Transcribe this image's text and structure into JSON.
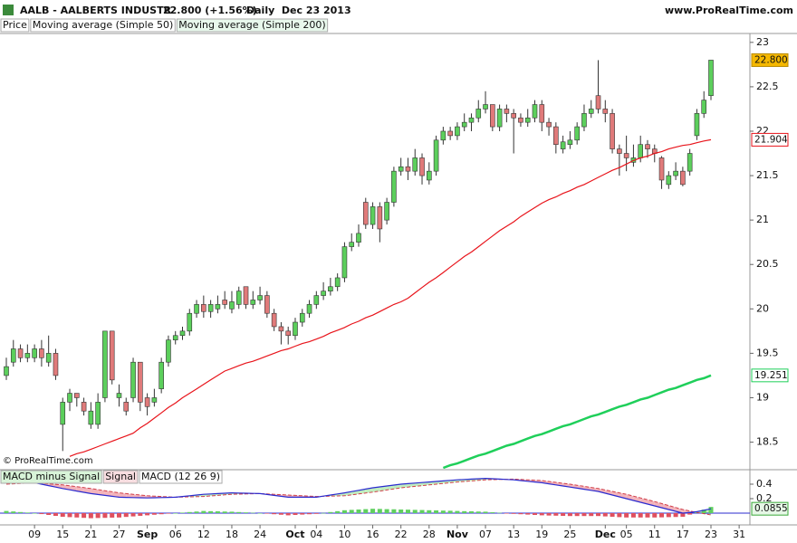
{
  "chart_data": [
    {
      "type": "candlestick",
      "title": "AALB - AALBERTS INDUSTR",
      "subtitle": "22.800 (+1.56%)",
      "period": "Daily  Dec 23 2013",
      "source": "www.ProRealTime.com",
      "copyright": "© ProRealTime.com",
      "price_name": "Price",
      "close_label": "22.800",
      "up_color": "#5ccf5c",
      "down_color": "#e07a7a",
      "label_color": "#f5b800",
      "categories": [
        null,
        null,
        null,
        null,
        "09",
        null,
        null,
        null,
        "15",
        null,
        null,
        null,
        "21",
        null,
        null,
        null,
        "27",
        null,
        null,
        null,
        "Sep",
        null,
        null,
        null,
        "06",
        null,
        null,
        null,
        "12",
        null,
        null,
        null,
        "18",
        null,
        null,
        null,
        "24",
        null,
        null,
        null,
        null,
        "Oct",
        null,
        null,
        "04",
        null,
        null,
        null,
        "10",
        null,
        null,
        null,
        "16",
        null,
        null,
        null,
        "22",
        null,
        null,
        null,
        "28",
        null,
        null,
        null,
        "Nov",
        null,
        null,
        null,
        "07",
        null,
        null,
        null,
        "13",
        null,
        null,
        null,
        "19",
        null,
        null,
        null,
        "25",
        null,
        null,
        null,
        null,
        "Dec",
        null,
        null,
        "05",
        null,
        null,
        null,
        "11",
        null,
        null,
        null,
        "17",
        null,
        null,
        null,
        "23",
        null,
        null,
        null,
        "31"
      ],
      "open": [
        19.25,
        19.4,
        19.55,
        19.45,
        19.45,
        19.55,
        19.4,
        19.5,
        18.7,
        18.95,
        19.05,
        18.95,
        18.7,
        18.7,
        19.0,
        19.75,
        19.0,
        18.95,
        19.0,
        19.4,
        19.0,
        18.95,
        19.1,
        19.4,
        19.65,
        19.7,
        19.75,
        19.95,
        20.05,
        19.97,
        20.0,
        20.1,
        20.0,
        20.05,
        20.25,
        20.05,
        20.1,
        20.15,
        19.95,
        19.8,
        19.75,
        19.7,
        19.85,
        19.95,
        20.05,
        20.15,
        20.2,
        20.25,
        20.35,
        20.7,
        20.75,
        21.2,
        20.95,
        21.15,
        21.0,
        21.2,
        21.55,
        21.6,
        21.55,
        21.7,
        21.45,
        21.55,
        21.9,
        22.0,
        21.95,
        22.05,
        22.1,
        22.15,
        22.25,
        22.3,
        22.05,
        22.25,
        22.2,
        22.15,
        22.1,
        22.15,
        22.3,
        22.1,
        22.05,
        21.8,
        21.85,
        21.9,
        22.05,
        22.2,
        22.4,
        22.25,
        22.2,
        21.8,
        21.75,
        21.65,
        21.7,
        21.85,
        21.8,
        21.7,
        21.4,
        21.5,
        21.55,
        21.55,
        21.95,
        22.2,
        22.4,
        null,
        null,
        null,
        null
      ],
      "high": [
        19.45,
        19.65,
        19.6,
        19.6,
        19.6,
        19.65,
        19.7,
        19.55,
        19.0,
        19.1,
        19.05,
        19.0,
        18.95,
        19.05,
        19.75,
        19.75,
        19.15,
        19.0,
        19.45,
        19.4,
        19.05,
        19.1,
        19.45,
        19.7,
        19.75,
        19.8,
        20.0,
        20.1,
        20.15,
        20.1,
        20.15,
        20.2,
        20.2,
        20.25,
        20.25,
        20.2,
        20.25,
        20.2,
        20.0,
        19.85,
        19.8,
        19.9,
        20.0,
        20.1,
        20.2,
        20.3,
        20.35,
        20.4,
        20.75,
        20.85,
        20.95,
        21.25,
        21.2,
        21.2,
        21.25,
        21.6,
        21.7,
        21.7,
        21.8,
        21.75,
        21.65,
        21.95,
        22.05,
        22.05,
        22.1,
        22.2,
        22.2,
        22.35,
        22.45,
        22.3,
        22.3,
        22.3,
        22.25,
        22.2,
        22.25,
        22.35,
        22.35,
        22.15,
        22.1,
        21.95,
        22.0,
        22.1,
        22.3,
        22.35,
        22.8,
        22.35,
        22.25,
        21.85,
        21.95,
        21.85,
        21.95,
        21.9,
        21.85,
        21.72,
        21.55,
        21.65,
        21.6,
        21.8,
        22.25,
        22.45,
        22.8,
        null,
        null,
        null,
        null
      ],
      "low": [
        19.2,
        19.35,
        19.4,
        19.4,
        19.4,
        19.35,
        19.35,
        19.2,
        18.4,
        18.85,
        18.9,
        18.8,
        18.65,
        18.65,
        18.95,
        19.15,
        18.9,
        18.8,
        18.95,
        18.85,
        18.8,
        18.9,
        19.05,
        19.35,
        19.6,
        19.65,
        19.7,
        19.9,
        19.9,
        19.9,
        19.95,
        20.0,
        19.95,
        20.0,
        20.0,
        20.0,
        20.05,
        19.9,
        19.75,
        19.6,
        19.6,
        19.65,
        19.8,
        19.9,
        20.0,
        20.1,
        20.15,
        20.2,
        20.3,
        20.65,
        20.7,
        20.9,
        20.9,
        20.75,
        20.95,
        21.15,
        21.5,
        21.45,
        21.5,
        21.4,
        21.4,
        21.5,
        21.85,
        21.9,
        21.9,
        22.0,
        22.0,
        22.1,
        22.2,
        22.0,
        22.0,
        22.1,
        21.75,
        22.05,
        22.05,
        22.1,
        22.0,
        21.95,
        21.75,
        21.75,
        21.8,
        21.85,
        22.0,
        22.15,
        22.2,
        22.1,
        21.75,
        21.5,
        21.55,
        21.6,
        21.65,
        21.7,
        21.65,
        21.35,
        21.35,
        21.45,
        21.38,
        21.5,
        21.9,
        22.15,
        22.35,
        null,
        null,
        null,
        null
      ],
      "close": [
        19.35,
        19.55,
        19.45,
        19.5,
        19.55,
        19.45,
        19.5,
        19.25,
        18.95,
        19.05,
        19.0,
        18.85,
        18.85,
        18.95,
        19.75,
        19.2,
        19.05,
        18.85,
        19.4,
        18.95,
        18.9,
        19.0,
        19.4,
        19.65,
        19.7,
        19.75,
        19.95,
        20.05,
        19.97,
        20.05,
        20.05,
        20.05,
        20.08,
        20.2,
        20.05,
        20.1,
        20.15,
        19.95,
        19.8,
        19.75,
        19.7,
        19.85,
        19.95,
        20.05,
        20.15,
        20.2,
        20.25,
        20.35,
        20.7,
        20.75,
        20.85,
        20.95,
        21.15,
        20.9,
        21.2,
        21.55,
        21.6,
        21.55,
        21.7,
        21.5,
        21.55,
        21.9,
        22.0,
        21.95,
        22.05,
        22.1,
        22.15,
        22.25,
        22.3,
        22.05,
        22.25,
        22.2,
        22.15,
        22.1,
        22.15,
        22.3,
        22.1,
        22.05,
        21.85,
        21.88,
        21.9,
        22.05,
        22.2,
        22.25,
        22.25,
        22.2,
        21.8,
        21.75,
        21.7,
        21.7,
        21.85,
        21.8,
        21.75,
        21.45,
        21.5,
        21.55,
        21.4,
        21.75,
        22.2,
        22.35,
        22.8,
        null,
        null,
        null,
        null
      ],
      "series": [
        {
          "name": "Moving average (Simple 50)",
          "color": "#e8141b",
          "values": [
            null,
            null,
            null,
            null,
            null,
            null,
            null,
            null,
            null,
            18.34,
            18.37,
            18.39,
            18.42,
            18.45,
            18.48,
            18.51,
            18.54,
            18.57,
            18.6,
            18.66,
            18.71,
            18.77,
            18.83,
            18.89,
            18.94,
            19.0,
            19.05,
            19.1,
            19.15,
            19.2,
            19.25,
            19.3,
            19.33,
            19.36,
            19.39,
            19.41,
            19.44,
            19.47,
            19.5,
            19.53,
            19.55,
            19.58,
            19.61,
            19.63,
            19.66,
            19.69,
            19.73,
            19.76,
            19.79,
            19.83,
            19.86,
            19.9,
            19.93,
            19.97,
            20.01,
            20.05,
            20.08,
            20.12,
            20.18,
            20.24,
            20.3,
            20.35,
            20.41,
            20.47,
            20.53,
            20.59,
            20.64,
            20.7,
            20.76,
            20.82,
            20.88,
            20.93,
            20.98,
            21.04,
            21.09,
            21.14,
            21.19,
            21.23,
            21.26,
            21.3,
            21.33,
            21.37,
            21.4,
            21.44,
            21.48,
            21.52,
            21.56,
            21.59,
            21.63,
            21.67,
            21.7,
            21.72,
            21.75,
            21.77,
            21.8,
            21.82,
            21.84,
            21.85,
            21.87,
            21.89,
            21.904,
            null,
            null,
            null,
            null
          ]
        },
        {
          "name": "Moving average (Simple 200)",
          "color": "#1fcf5a",
          "values": [
            null,
            null,
            null,
            null,
            null,
            null,
            null,
            null,
            null,
            null,
            null,
            null,
            null,
            null,
            null,
            null,
            null,
            null,
            null,
            null,
            null,
            null,
            null,
            null,
            null,
            null,
            null,
            null,
            null,
            null,
            null,
            null,
            null,
            null,
            null,
            null,
            null,
            null,
            null,
            null,
            null,
            null,
            null,
            null,
            null,
            null,
            null,
            null,
            null,
            null,
            null,
            null,
            null,
            null,
            null,
            null,
            null,
            null,
            null,
            null,
            null,
            null,
            18.21,
            18.24,
            18.26,
            18.29,
            18.32,
            18.35,
            18.37,
            18.4,
            18.43,
            18.46,
            18.48,
            18.51,
            18.54,
            18.57,
            18.59,
            18.62,
            18.65,
            18.68,
            18.7,
            18.73,
            18.76,
            18.79,
            18.81,
            18.84,
            18.87,
            18.9,
            18.92,
            18.95,
            18.98,
            19.0,
            19.03,
            19.06,
            19.09,
            19.11,
            19.14,
            19.17,
            19.2,
            19.22,
            19.251,
            null,
            null,
            null,
            null
          ]
        }
      ],
      "ylim": [
        18.2,
        23.1
      ],
      "yticks": [
        18.5,
        19,
        19.5,
        20,
        20.5,
        21,
        21.5,
        22,
        22.5,
        23
      ]
    },
    {
      "type": "macd",
      "series": [
        {
          "name": "MACD minus Signal",
          "color": "#5fcf5f",
          "negative_color": "#e0505f",
          "values": [
            0.03,
            0.023,
            0.015,
            0.008,
            0,
            -0.013,
            -0.025,
            -0.038,
            -0.05,
            -0.055,
            -0.06,
            -0.065,
            -0.07,
            -0.067,
            -0.065,
            -0.062,
            -0.06,
            -0.052,
            -0.045,
            -0.037,
            -0.03,
            -0.022,
            -0.015,
            -0.007,
            0,
            0.007,
            0.015,
            0.022,
            0.03,
            0.027,
            0.025,
            0.022,
            0.02,
            0.015,
            0.01,
            0.005,
            0,
            -0.007,
            -0.015,
            -0.022,
            -0.03,
            -0.025,
            -0.02,
            -0.015,
            -0.01,
            0.002,
            0.015,
            0.027,
            0.04,
            0.045,
            0.05,
            0.055,
            0.06,
            0.058,
            0.055,
            0.053,
            0.05,
            0.048,
            0.045,
            0.043,
            0.04,
            0.038,
            0.035,
            0.033,
            0.03,
            0.027,
            0.025,
            0.022,
            0.02,
            0.012,
            0.005,
            -0.003,
            -0.01,
            -0.015,
            -0.02,
            -0.025,
            -0.03,
            -0.033,
            -0.035,
            -0.038,
            -0.04,
            -0.04,
            -0.04,
            -0.04,
            -0.04,
            -0.045,
            -0.05,
            -0.055,
            -0.06,
            -0.06,
            -0.06,
            -0.06,
            -0.06,
            -0.058,
            -0.055,
            -0.053,
            -0.05,
            -0.02,
            0.01,
            0.048,
            0.0855,
            null,
            null,
            null,
            null
          ]
        },
        {
          "name": "Signal",
          "color": "#d0404a",
          "values": [
            0.4,
            0.405,
            0.41,
            0.415,
            0.42,
            0.413,
            0.405,
            0.398,
            0.39,
            0.378,
            0.365,
            0.353,
            0.34,
            0.325,
            0.31,
            0.295,
            0.28,
            0.27,
            0.26,
            0.25,
            0.24,
            0.235,
            0.23,
            0.225,
            0.22,
            0.223,
            0.225,
            0.228,
            0.23,
            0.238,
            0.245,
            0.253,
            0.26,
            0.263,
            0.265,
            0.268,
            0.27,
            0.265,
            0.26,
            0.255,
            0.25,
            0.245,
            0.24,
            0.235,
            0.23,
            0.233,
            0.235,
            0.238,
            0.24,
            0.253,
            0.265,
            0.278,
            0.29,
            0.305,
            0.32,
            0.335,
            0.35,
            0.36,
            0.37,
            0.38,
            0.39,
            0.4,
            0.41,
            0.42,
            0.43,
            0.438,
            0.445,
            0.453,
            0.46,
            0.463,
            0.465,
            0.468,
            0.47,
            0.465,
            0.46,
            0.455,
            0.45,
            0.438,
            0.425,
            0.413,
            0.4,
            0.385,
            0.37,
            0.355,
            0.34,
            0.32,
            0.3,
            0.28,
            0.26,
            0.235,
            0.21,
            0.185,
            0.16,
            0.133,
            0.105,
            0.078,
            0.05,
            0.03,
            0.01,
            -0.008,
            -0.025,
            null,
            null,
            null,
            null
          ]
        },
        {
          "name": "MACD (12 26 9)",
          "color": "#2b2bcf",
          "values": [
            0.43,
            0.428,
            0.425,
            0.423,
            0.42,
            0.4,
            0.38,
            0.36,
            0.34,
            0.323,
            0.305,
            0.288,
            0.27,
            0.258,
            0.245,
            0.233,
            0.22,
            0.218,
            0.215,
            0.213,
            0.21,
            0.213,
            0.215,
            0.218,
            0.22,
            0.23,
            0.24,
            0.25,
            0.26,
            0.265,
            0.27,
            0.275,
            0.28,
            0.278,
            0.275,
            0.273,
            0.27,
            0.258,
            0.245,
            0.233,
            0.22,
            0.22,
            0.22,
            0.22,
            0.22,
            0.235,
            0.25,
            0.265,
            0.28,
            0.298,
            0.315,
            0.333,
            0.35,
            0.363,
            0.375,
            0.388,
            0.4,
            0.408,
            0.415,
            0.423,
            0.43,
            0.438,
            0.445,
            0.453,
            0.46,
            0.465,
            0.47,
            0.475,
            0.48,
            0.475,
            0.47,
            0.465,
            0.46,
            0.45,
            0.44,
            0.43,
            0.42,
            0.405,
            0.39,
            0.375,
            0.36,
            0.345,
            0.33,
            0.315,
            0.3,
            0.275,
            0.25,
            0.225,
            0.2,
            0.175,
            0.15,
            0.125,
            0.1,
            0.075,
            0.05,
            0.025,
            0,
            0.01,
            0.02,
            0.04,
            0.06,
            null,
            null,
            null,
            null
          ]
        }
      ],
      "ylim": [
        -0.15,
        0.575
      ],
      "yticks": [
        0.2,
        0.4
      ]
    }
  ]
}
